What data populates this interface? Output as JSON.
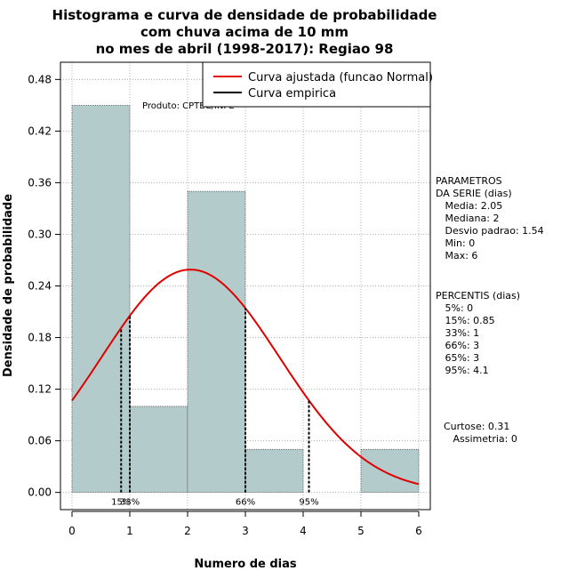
{
  "chart_data": {
    "type": "bar",
    "title_lines": [
      "Histograma e curva de densidade de probabilidade",
      "com chuva acima de 10 mm",
      "no mes de abril (1998-2017): Regiao 98"
    ],
    "xlabel": "Numero de dias",
    "ylabel": "Densidade de probabilidade",
    "xlim": [
      -0.2,
      6.2
    ],
    "ylim": [
      -0.02,
      0.5
    ],
    "x_ticks": [
      "0",
      "1",
      "2",
      "3",
      "4",
      "5",
      "6"
    ],
    "y_ticks": [
      "0.00",
      "0.06",
      "0.12",
      "0.18",
      "0.24",
      "0.30",
      "0.36",
      "0.42",
      "0.48"
    ],
    "bins": [
      {
        "start": 0,
        "end": 1,
        "density": 0.45
      },
      {
        "start": 1,
        "end": 2,
        "density": 0.1
      },
      {
        "start": 2,
        "end": 3,
        "density": 0.35
      },
      {
        "start": 3,
        "end": 4,
        "density": 0.05
      },
      {
        "start": 4,
        "end": 5,
        "density": 0.0
      },
      {
        "start": 5,
        "end": 6,
        "density": 0.05
      }
    ],
    "normal_fit": {
      "mean": 2.05,
      "sd": 1.54,
      "color": "#e00000"
    },
    "bar_color": "#b4cbcb",
    "grid": true,
    "legend": {
      "position": "top-right",
      "entries": [
        {
          "label": "Curva ajustada (funcao Normal)",
          "color": "#e00000"
        },
        {
          "label": "Curva empirica",
          "color": "#000000"
        }
      ]
    },
    "product_label": "Produto: CPTEC/INPE",
    "percentile_markers": [
      {
        "label": "15%",
        "x": 0.85
      },
      {
        "label": "33%",
        "x": 1.0
      },
      {
        "label": "66%",
        "x": 3.0
      },
      {
        "label": "95%",
        "x": 4.1
      }
    ]
  },
  "side_panel": {
    "params_lines": [
      "PARAMETROS",
      "DA SERIE (dias)",
      "   Media: 2.05",
      "   Mediana: 2",
      "   Desvio padrao: 1.54",
      "   Min: 0",
      "   Max: 6"
    ],
    "percentile_lines": [
      "PERCENTIS (dias)",
      "   5%: 0",
      "   15%: 0.85",
      "   33%: 1",
      "   66%: 3",
      "   65%: 3",
      "   95%: 4.1"
    ],
    "shape_lines": [
      "Curtose: 0.31",
      "   Assimetria: 0"
    ]
  }
}
